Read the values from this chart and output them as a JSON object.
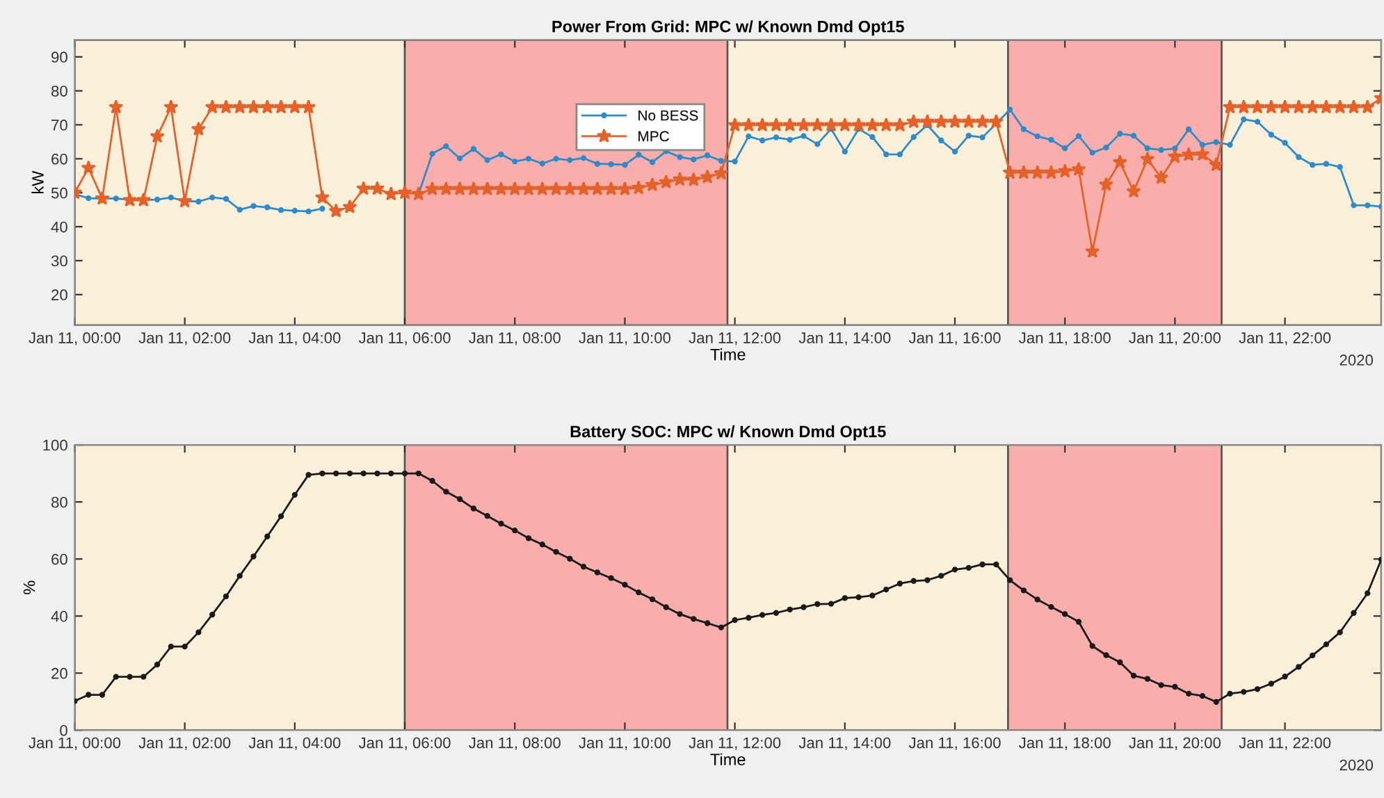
{
  "chart_data": [
    {
      "type": "line",
      "title": "Power From Grid: MPC w/ Known Dmd Opt15",
      "xlabel": "Time",
      "ylabel": "kW",
      "annotations": [
        "2020"
      ],
      "x": [
        "2020-01-11T00:00",
        "2020-01-11T00:15",
        "2020-01-11T00:30",
        "2020-01-11T00:45",
        "2020-01-11T01:00",
        "2020-01-11T01:15",
        "2020-01-11T01:30",
        "2020-01-11T01:45",
        "2020-01-11T02:00",
        "2020-01-11T02:15",
        "2020-01-11T02:30",
        "2020-01-11T02:45",
        "2020-01-11T03:00",
        "2020-01-11T03:15",
        "2020-01-11T03:30",
        "2020-01-11T03:45",
        "2020-01-11T04:00",
        "2020-01-11T04:15",
        "2020-01-11T04:30",
        "2020-01-11T04:45",
        "2020-01-11T05:00",
        "2020-01-11T05:15",
        "2020-01-11T05:30",
        "2020-01-11T05:45",
        "2020-01-11T06:00",
        "2020-01-11T06:15",
        "2020-01-11T06:30",
        "2020-01-11T06:45",
        "2020-01-11T07:00",
        "2020-01-11T07:15",
        "2020-01-11T07:30",
        "2020-01-11T07:45",
        "2020-01-11T08:00",
        "2020-01-11T08:15",
        "2020-01-11T08:30",
        "2020-01-11T08:45",
        "2020-01-11T09:00",
        "2020-01-11T09:15",
        "2020-01-11T09:30",
        "2020-01-11T09:45",
        "2020-01-11T10:00",
        "2020-01-11T10:15",
        "2020-01-11T10:30",
        "2020-01-11T10:45",
        "2020-01-11T11:00",
        "2020-01-11T11:15",
        "2020-01-11T11:30",
        "2020-01-11T11:45",
        "2020-01-11T12:00",
        "2020-01-11T12:15",
        "2020-01-11T12:30",
        "2020-01-11T12:45",
        "2020-01-11T13:00",
        "2020-01-11T13:15",
        "2020-01-11T13:30",
        "2020-01-11T13:45",
        "2020-01-11T14:00",
        "2020-01-11T14:15",
        "2020-01-11T14:30",
        "2020-01-11T14:45",
        "2020-01-11T15:00",
        "2020-01-11T15:15",
        "2020-01-11T15:30",
        "2020-01-11T15:45",
        "2020-01-11T16:00",
        "2020-01-11T16:15",
        "2020-01-11T16:30",
        "2020-01-11T16:45",
        "2020-01-11T17:00",
        "2020-01-11T17:15",
        "2020-01-11T17:30",
        "2020-01-11T17:45",
        "2020-01-11T18:00",
        "2020-01-11T18:15",
        "2020-01-11T18:30",
        "2020-01-11T18:45",
        "2020-01-11T19:00",
        "2020-01-11T19:15",
        "2020-01-11T19:30",
        "2020-01-11T19:45",
        "2020-01-11T20:00",
        "2020-01-11T20:15",
        "2020-01-11T20:30",
        "2020-01-11T20:45",
        "2020-01-11T21:00",
        "2020-01-11T21:15",
        "2020-01-11T21:30",
        "2020-01-11T21:45",
        "2020-01-11T22:00",
        "2020-01-11T22:15",
        "2020-01-11T22:30",
        "2020-01-11T22:45",
        "2020-01-11T23:00",
        "2020-01-11T23:15",
        "2020-01-11T23:30",
        "2020-01-11T23:45"
      ],
      "series": [
        {
          "name": "No BESS",
          "color": "#2f8acb",
          "marker": "circle",
          "values": [
            49.6,
            48.4,
            48.3,
            48.3,
            48.0,
            47.9,
            48.0,
            48.6,
            47.5,
            47.4,
            48.6,
            48.2,
            45.0,
            46.1,
            45.7,
            44.9,
            44.7,
            44.5,
            45.3,
            null,
            null,
            null,
            null,
            null,
            null,
            49.6,
            61.5,
            63.7,
            60.1,
            62.9,
            59.6,
            61.3,
            59.2,
            60.0,
            58.6,
            60.0,
            59.6,
            60.2,
            58.5,
            58.4,
            58.2,
            61.2,
            59.0,
            62.2,
            60.5,
            59.8,
            61.0,
            59.4,
            59.2,
            66.6,
            65.4,
            66.3,
            65.6,
            66.7,
            64.3,
            68.8,
            62.1,
            68.8,
            66.4,
            61.3,
            61.3,
            66.4,
            69.9,
            65.4,
            62.1,
            66.8,
            66.3,
            70.3,
            74.5,
            68.7,
            66.6,
            65.6,
            63.1,
            66.7,
            61.8,
            63.3,
            67.4,
            66.8,
            63.1,
            62.6,
            63.0,
            68.7,
            64.1,
            64.9,
            64.1,
            71.6,
            70.9,
            67.1,
            64.7,
            60.5,
            58.2,
            58.5,
            57.6,
            46.3,
            46.3,
            45.9
          ]
        },
        {
          "name": "MPC",
          "color": "#e4622a",
          "marker": "star",
          "values": [
            50.0,
            57.3,
            48.3,
            75.2,
            47.8,
            47.8,
            66.6,
            75.2,
            47.5,
            68.7,
            75.2,
            75.2,
            75.2,
            75.2,
            75.2,
            75.2,
            75.2,
            75.2,
            48.6,
            44.6,
            45.8,
            51.2,
            51.2,
            49.6,
            50.0,
            49.6,
            51.1,
            51.1,
            51.1,
            51.1,
            51.1,
            51.1,
            51.1,
            51.1,
            51.1,
            51.1,
            51.1,
            51.1,
            51.1,
            51.1,
            51.1,
            51.4,
            52.3,
            53.1,
            53.9,
            53.8,
            54.6,
            55.7,
            69.9,
            69.9,
            69.9,
            69.9,
            69.9,
            69.9,
            69.9,
            69.9,
            69.9,
            69.9,
            69.9,
            69.9,
            69.9,
            70.9,
            70.9,
            70.9,
            70.9,
            70.9,
            70.9,
            70.9,
            55.9,
            55.9,
            55.9,
            55.9,
            56.3,
            56.9,
            32.7,
            52.4,
            59.0,
            50.4,
            59.9,
            54.4,
            60.6,
            61.2,
            61.3,
            58.2,
            75.2,
            75.2,
            75.2,
            75.2,
            75.2,
            75.2,
            75.2,
            75.2,
            75.2,
            75.2,
            75.2,
            77.8
          ]
        }
      ],
      "xlim": [
        "2020-01-11T00:00",
        "2020-01-11T23:45"
      ],
      "ylim": [
        11,
        95
      ],
      "xticks": [
        {
          "value": "2020-01-11T00:00",
          "label": "Jan 11, 00:00"
        },
        {
          "value": "2020-01-11T02:00",
          "label": "Jan 11, 02:00"
        },
        {
          "value": "2020-01-11T04:00",
          "label": "Jan 11, 04:00"
        },
        {
          "value": "2020-01-11T06:00",
          "label": "Jan 11, 06:00"
        },
        {
          "value": "2020-01-11T08:00",
          "label": "Jan 11, 08:00"
        },
        {
          "value": "2020-01-11T10:00",
          "label": "Jan 11, 10:00"
        },
        {
          "value": "2020-01-11T12:00",
          "label": "Jan 11, 12:00"
        },
        {
          "value": "2020-01-11T14:00",
          "label": "Jan 11, 14:00"
        },
        {
          "value": "2020-01-11T16:00",
          "label": "Jan 11, 16:00"
        },
        {
          "value": "2020-01-11T18:00",
          "label": "Jan 11, 18:00"
        },
        {
          "value": "2020-01-11T20:00",
          "label": "Jan 11, 20:00"
        },
        {
          "value": "2020-01-11T22:00",
          "label": "Jan 11, 22:00"
        }
      ],
      "yticks": [
        20,
        30,
        40,
        50,
        60,
        70,
        80,
        90
      ],
      "bands": [
        {
          "axis": "x",
          "from": "2020-01-11T00:00",
          "to": "2020-01-11T06:00",
          "color": "#faefd8"
        },
        {
          "axis": "x",
          "from": "2020-01-11T06:00",
          "to": "2020-01-11T11:52",
          "color": "#f9aeab"
        },
        {
          "axis": "x",
          "from": "2020-01-11T11:52",
          "to": "2020-01-11T16:58",
          "color": "#faefd8"
        },
        {
          "axis": "x",
          "from": "2020-01-11T16:58",
          "to": "2020-01-11T20:51",
          "color": "#f9aeab"
        },
        {
          "axis": "x",
          "from": "2020-01-11T20:51",
          "to": "2020-01-11T23:45",
          "color": "#faefd8"
        }
      ],
      "legend": "top",
      "grid": false
    },
    {
      "type": "line",
      "title": "Battery SOC: MPC w/ Known Dmd Opt15",
      "xlabel": "Time",
      "ylabel": "%",
      "annotations": [
        "2020"
      ],
      "x": [
        "2020-01-11T00:00",
        "2020-01-11T00:15",
        "2020-01-11T00:30",
        "2020-01-11T00:45",
        "2020-01-11T01:00",
        "2020-01-11T01:15",
        "2020-01-11T01:30",
        "2020-01-11T01:45",
        "2020-01-11T02:00",
        "2020-01-11T02:15",
        "2020-01-11T02:30",
        "2020-01-11T02:45",
        "2020-01-11T03:00",
        "2020-01-11T03:15",
        "2020-01-11T03:30",
        "2020-01-11T03:45",
        "2020-01-11T04:00",
        "2020-01-11T04:15",
        "2020-01-11T04:30",
        "2020-01-11T04:45",
        "2020-01-11T05:00",
        "2020-01-11T05:15",
        "2020-01-11T05:30",
        "2020-01-11T05:45",
        "2020-01-11T06:00",
        "2020-01-11T06:15",
        "2020-01-11T06:30",
        "2020-01-11T06:45",
        "2020-01-11T07:00",
        "2020-01-11T07:15",
        "2020-01-11T07:30",
        "2020-01-11T07:45",
        "2020-01-11T08:00",
        "2020-01-11T08:15",
        "2020-01-11T08:30",
        "2020-01-11T08:45",
        "2020-01-11T09:00",
        "2020-01-11T09:15",
        "2020-01-11T09:30",
        "2020-01-11T09:45",
        "2020-01-11T10:00",
        "2020-01-11T10:15",
        "2020-01-11T10:30",
        "2020-01-11T10:45",
        "2020-01-11T11:00",
        "2020-01-11T11:15",
        "2020-01-11T11:30",
        "2020-01-11T11:45",
        "2020-01-11T12:00",
        "2020-01-11T12:15",
        "2020-01-11T12:30",
        "2020-01-11T12:45",
        "2020-01-11T13:00",
        "2020-01-11T13:15",
        "2020-01-11T13:30",
        "2020-01-11T13:45",
        "2020-01-11T14:00",
        "2020-01-11T14:15",
        "2020-01-11T14:30",
        "2020-01-11T14:45",
        "2020-01-11T15:00",
        "2020-01-11T15:15",
        "2020-01-11T15:30",
        "2020-01-11T15:45",
        "2020-01-11T16:00",
        "2020-01-11T16:15",
        "2020-01-11T16:30",
        "2020-01-11T16:45",
        "2020-01-11T17:00",
        "2020-01-11T17:15",
        "2020-01-11T17:30",
        "2020-01-11T17:45",
        "2020-01-11T18:00",
        "2020-01-11T18:15",
        "2020-01-11T18:30",
        "2020-01-11T18:45",
        "2020-01-11T19:00",
        "2020-01-11T19:15",
        "2020-01-11T19:30",
        "2020-01-11T19:45",
        "2020-01-11T20:00",
        "2020-01-11T20:15",
        "2020-01-11T20:30",
        "2020-01-11T20:45",
        "2020-01-11T21:00",
        "2020-01-11T21:15",
        "2020-01-11T21:30",
        "2020-01-11T21:45",
        "2020-01-11T22:00",
        "2020-01-11T22:15",
        "2020-01-11T22:30",
        "2020-01-11T22:45",
        "2020-01-11T23:00",
        "2020-01-11T23:15",
        "2020-01-11T23:30",
        "2020-01-11T23:45"
      ],
      "series": [
        {
          "color": "#1a1a1a",
          "marker": "circle",
          "values": [
            10.2,
            12.4,
            12.4,
            18.7,
            18.7,
            18.7,
            23.0,
            29.3,
            29.3,
            34.3,
            40.5,
            46.9,
            54.1,
            60.9,
            67.9,
            75.0,
            82.5,
            89.5,
            90,
            90,
            90,
            90,
            90,
            90,
            90,
            90,
            87.4,
            83.6,
            81.0,
            77.7,
            75.1,
            72.4,
            70.0,
            67.3,
            65.1,
            62.5,
            60.1,
            57.3,
            55.3,
            53.3,
            51.0,
            48.3,
            45.9,
            43.1,
            40.7,
            39.0,
            37.5,
            36.0,
            38.6,
            39.4,
            40.4,
            41.1,
            42.3,
            43.1,
            44.2,
            44.3,
            46.3,
            46.6,
            47.2,
            49.3,
            51.4,
            52.3,
            52.6,
            54.1,
            56.3,
            56.9,
            58.1,
            58.1,
            52.6,
            49.0,
            45.8,
            43.2,
            40.7,
            38.0,
            29.5,
            26.3,
            23.8,
            19.1,
            18.0,
            15.8,
            15.2,
            12.8,
            12.0,
            9.9,
            12.8,
            13.4,
            14.4,
            16.3,
            18.8,
            22.2,
            26.2,
            30.1,
            34.3,
            41.1,
            48.0,
            59.8
          ]
        }
      ],
      "xlim": [
        "2020-01-11T00:00",
        "2020-01-11T23:45"
      ],
      "ylim": [
        0,
        100
      ],
      "xticks": [
        {
          "value": "2020-01-11T00:00",
          "label": "Jan 11, 00:00"
        },
        {
          "value": "2020-01-11T02:00",
          "label": "Jan 11, 02:00"
        },
        {
          "value": "2020-01-11T04:00",
          "label": "Jan 11, 04:00"
        },
        {
          "value": "2020-01-11T06:00",
          "label": "Jan 11, 06:00"
        },
        {
          "value": "2020-01-11T08:00",
          "label": "Jan 11, 08:00"
        },
        {
          "value": "2020-01-11T10:00",
          "label": "Jan 11, 10:00"
        },
        {
          "value": "2020-01-11T12:00",
          "label": "Jan 11, 12:00"
        },
        {
          "value": "2020-01-11T14:00",
          "label": "Jan 11, 14:00"
        },
        {
          "value": "2020-01-11T16:00",
          "label": "Jan 11, 16:00"
        },
        {
          "value": "2020-01-11T18:00",
          "label": "Jan 11, 18:00"
        },
        {
          "value": "2020-01-11T20:00",
          "label": "Jan 11, 20:00"
        },
        {
          "value": "2020-01-11T22:00",
          "label": "Jan 11, 22:00"
        }
      ],
      "yticks": [
        0,
        20,
        40,
        60,
        80,
        100
      ],
      "bands": [
        {
          "axis": "x",
          "from": "2020-01-11T00:00",
          "to": "2020-01-11T06:00",
          "color": "#faefd8"
        },
        {
          "axis": "x",
          "from": "2020-01-11T06:00",
          "to": "2020-01-11T11:52",
          "color": "#f9aeab"
        },
        {
          "axis": "x",
          "from": "2020-01-11T11:52",
          "to": "2020-01-11T16:58",
          "color": "#faefd8"
        },
        {
          "axis": "x",
          "from": "2020-01-11T16:58",
          "to": "2020-01-11T20:51",
          "color": "#f9aeab"
        },
        {
          "axis": "x",
          "from": "2020-01-11T20:51",
          "to": "2020-01-11T23:45",
          "color": "#faefd8"
        }
      ],
      "grid": false
    }
  ]
}
